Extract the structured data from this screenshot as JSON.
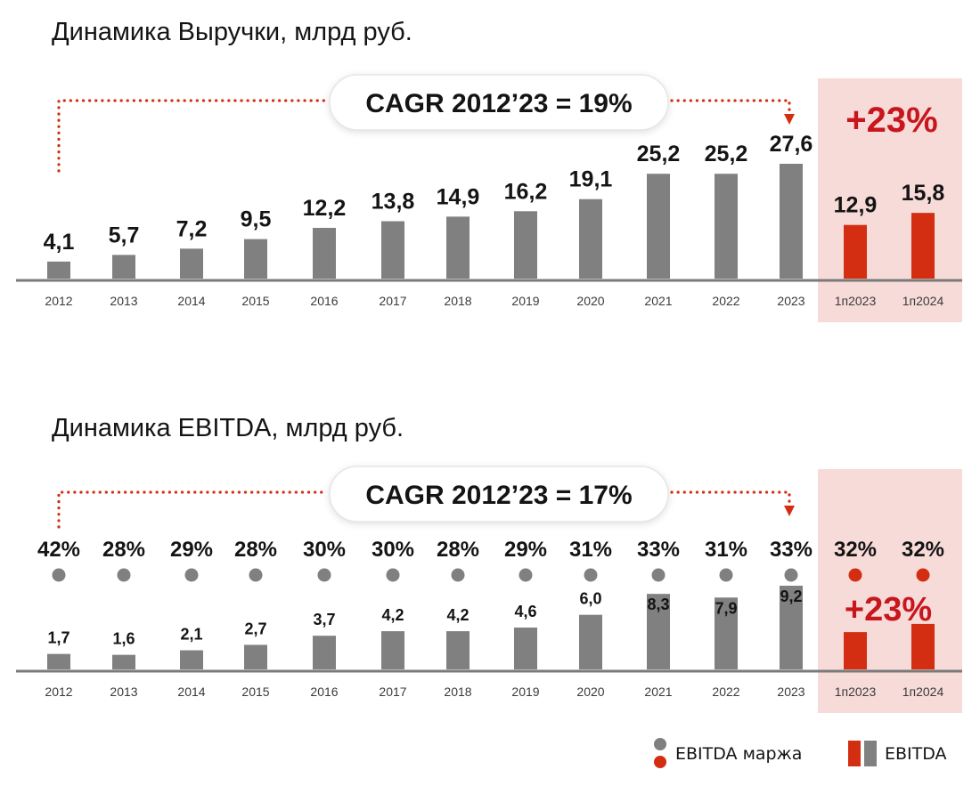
{
  "colors": {
    "gray_bar": "#808080",
    "red_bar": "#d42e12",
    "highlight_bg": "#f7dbd9",
    "arrow": "#d42e12",
    "growth_text": "#c8161d",
    "axis": "#7a7a7a"
  },
  "chart_data": [
    {
      "type": "bar",
      "title": "Динамика Выручки, млрд руб.",
      "categories": [
        "2012",
        "2013",
        "2014",
        "2015",
        "2016",
        "2017",
        "2018",
        "2019",
        "2020",
        "2021",
        "2022",
        "2023",
        "1п2023",
        "1п2024"
      ],
      "values": [
        4.1,
        5.7,
        7.2,
        9.5,
        12.2,
        13.8,
        14.9,
        16.2,
        19.1,
        25.2,
        25.2,
        27.6,
        12.9,
        15.8
      ],
      "value_labels": [
        "4,1",
        "5,7",
        "7,2",
        "9,5",
        "12,2",
        "13,8",
        "14,9",
        "16,2",
        "19,1",
        "25,2",
        "25,2",
        "27,6",
        "12,9",
        "15,8"
      ],
      "highlighted": [
        false,
        false,
        false,
        false,
        false,
        false,
        false,
        false,
        false,
        false,
        false,
        false,
        true,
        true
      ],
      "cagr_label": "CAGR 2012’23 = 19%",
      "growth_label": "+23%",
      "ylim": [
        0,
        30
      ],
      "xlabel": "",
      "ylabel": ""
    },
    {
      "type": "bar",
      "title": "Динамика EBITDA, млрд руб.",
      "categories": [
        "2012",
        "2013",
        "2014",
        "2015",
        "2016",
        "2017",
        "2018",
        "2019",
        "2020",
        "2021",
        "2022",
        "2023",
        "1п2023",
        "1п2024"
      ],
      "values": [
        1.7,
        1.6,
        2.1,
        2.7,
        3.7,
        4.2,
        4.2,
        4.6,
        6.0,
        8.3,
        7.9,
        9.2,
        4.1,
        5.0
      ],
      "value_labels": [
        "1,7",
        "1,6",
        "2,1",
        "2,7",
        "3,7",
        "4,2",
        "4,2",
        "4,6",
        "6,0",
        "8,3",
        "7,9",
        "9,2",
        "",
        ""
      ],
      "highlighted": [
        false,
        false,
        false,
        false,
        false,
        false,
        false,
        false,
        false,
        false,
        false,
        false,
        true,
        true
      ],
      "margin_series": {
        "name": "EBITDA маржа",
        "values": [
          42,
          28,
          29,
          28,
          30,
          30,
          28,
          29,
          31,
          33,
          31,
          33,
          32,
          32
        ],
        "labels": [
          "42%",
          "28%",
          "29%",
          "28%",
          "30%",
          "30%",
          "28%",
          "29%",
          "31%",
          "33%",
          "31%",
          "33%",
          "32%",
          "32%"
        ]
      },
      "cagr_label": "CAGR 2012’23 = 17%",
      "growth_label": "+23%",
      "ylim": [
        0,
        10
      ],
      "xlabel": "",
      "ylabel": ""
    }
  ],
  "legend": {
    "margin_label": "EBITDA маржа",
    "bar_label": "EBITDA"
  }
}
